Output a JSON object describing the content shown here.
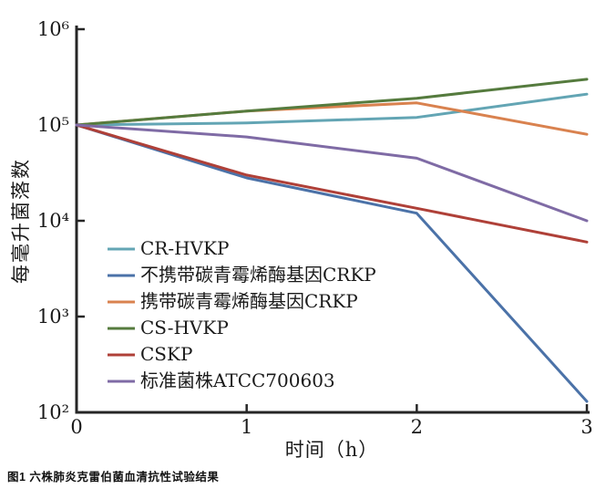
{
  "figure_caption": "图1 六株肺炎克雷伯菌血清抗性试验结果",
  "chart_data": {
    "type": "line",
    "title": "",
    "xlabel": "时间（h）",
    "ylabel": "每毫升菌落数",
    "x": [
      0,
      1,
      2,
      3
    ],
    "x_tick_labels": [
      "0",
      "1",
      "2",
      "3"
    ],
    "y_axis": {
      "scale": "log",
      "min": 100,
      "max": 1000000,
      "ticks": [
        {
          "value": 100,
          "label": "10²"
        },
        {
          "value": 1000,
          "label": "10³"
        },
        {
          "value": 10000,
          "label": "10⁴"
        },
        {
          "value": 100000,
          "label": "10⁵"
        },
        {
          "value": 1000000,
          "label": "10⁶"
        }
      ]
    },
    "grid": false,
    "legend_position": "inside-left",
    "axis_color": "#262626",
    "series": [
      {
        "name": "CR-HVKP",
        "color": "#63A5B4",
        "values": [
          100000,
          105000,
          120000,
          210000
        ]
      },
      {
        "name": "不携带碳青霉烯酶基因CRKP",
        "color": "#4B72A8",
        "values": [
          100000,
          28000,
          12000,
          130
        ]
      },
      {
        "name": "携带碳青霉烯酶基因CRKP",
        "color": "#D9824F",
        "values": [
          100000,
          140000,
          170000,
          80000
        ]
      },
      {
        "name": "CS-HVKP",
        "color": "#557B3E",
        "values": [
          100000,
          140000,
          190000,
          300000
        ]
      },
      {
        "name": "CSKP",
        "color": "#AF4038",
        "values": [
          100000,
          30000,
          13500,
          6000
        ]
      },
      {
        "name": "标准菌株ATCC700603",
        "color": "#7F6BA5",
        "values": [
          100000,
          75000,
          45000,
          10000
        ]
      }
    ]
  }
}
